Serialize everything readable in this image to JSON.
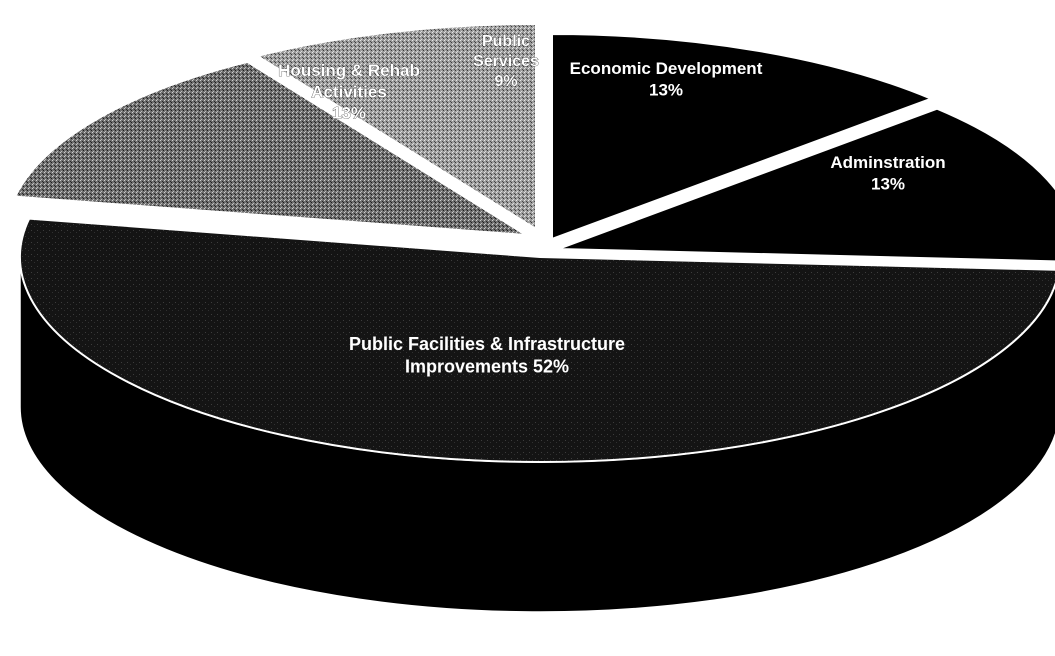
{
  "chart_data": {
    "type": "pie",
    "style": "3d-exploded",
    "slices": [
      {
        "label_lines": [
          "Economic Development"
        ],
        "percent_label": "13%",
        "value": 13,
        "fill": "#000000"
      },
      {
        "label_lines": [
          "Adminstration"
        ],
        "percent_label": "13%",
        "value": 13,
        "fill": "#000000"
      },
      {
        "label_lines": [
          "Public Facilities & Infrastructure",
          "Improvements 52%"
        ],
        "percent_label": "",
        "value": 52,
        "fill": "#1a1a1a"
      },
      {
        "label_lines": [
          "Housing & Rehab",
          "Activities"
        ],
        "percent_label": "13%",
        "value": 13,
        "fill": "#777777"
      },
      {
        "label_lines": [
          "Public",
          "Services"
        ],
        "percent_label": "9%",
        "value": 9,
        "fill": "#9a9a9a"
      }
    ],
    "edge_color": "#ffffff"
  }
}
